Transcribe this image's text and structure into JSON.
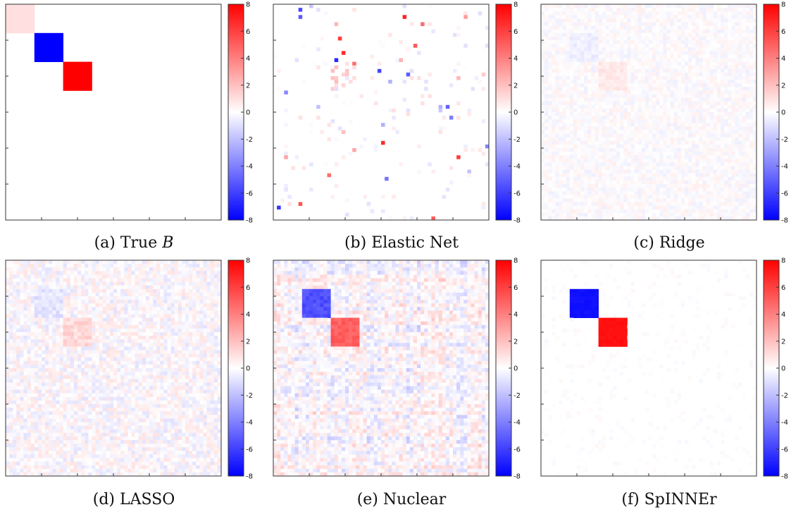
{
  "colorbar": {
    "min": -8,
    "max": 8,
    "ticks": [
      "8",
      "6",
      "4",
      "2",
      "0",
      "-2",
      "-4",
      "-6",
      "-8"
    ],
    "colors": {
      "low": "#0000ff",
      "mid": "#ffffff",
      "high": "#ff0000"
    }
  },
  "captions": [
    {
      "prefix": "(a) True ",
      "var": "B"
    },
    {
      "prefix": "(b) Elastic Net",
      "var": ""
    },
    {
      "prefix": "(c) Ridge",
      "var": ""
    },
    {
      "prefix": "(d) LASSO",
      "var": ""
    },
    {
      "prefix": "(e) Nuclear",
      "var": ""
    },
    {
      "prefix": "(f) SpINNEr",
      "var": ""
    }
  ],
  "chart_data": [
    {
      "type": "heatmap",
      "title": "(a) True B",
      "grid_size": 60,
      "zlim": [
        -8,
        8
      ],
      "blocks": [
        {
          "rows": [
            0,
            7
          ],
          "cols": [
            0,
            7
          ],
          "value": 1
        },
        {
          "rows": [
            8,
            15
          ],
          "cols": [
            8,
            15
          ],
          "value": -8
        },
        {
          "rows": [
            16,
            23
          ],
          "cols": [
            16,
            23
          ],
          "value": 8
        }
      ],
      "noise": {
        "amplitude": 0,
        "density": 0
      },
      "outliers": 0,
      "stripes": 0,
      "seed": 1
    },
    {
      "type": "heatmap",
      "title": "(b) Elastic Net",
      "grid_size": 60,
      "zlim": [
        -8,
        8
      ],
      "blocks": [
        {
          "rows": [
            16,
            23
          ],
          "cols": [
            16,
            23
          ],
          "value": 1.5,
          "density": 0.35
        }
      ],
      "noise": {
        "amplitude": 1,
        "density": 0.05
      },
      "outliers": 38,
      "stripes": 0,
      "seed": 2
    },
    {
      "type": "heatmap",
      "title": "(c) Ridge",
      "grid_size": 60,
      "zlim": [
        -8,
        8
      ],
      "blocks": [
        {
          "rows": [
            16,
            23
          ],
          "cols": [
            16,
            23
          ],
          "value": 0.7
        },
        {
          "rows": [
            8,
            15
          ],
          "cols": [
            8,
            15
          ],
          "value": -0.5
        }
      ],
      "noise": {
        "amplitude": 0.5,
        "density": 1
      },
      "outliers": 0,
      "stripes": 0,
      "seed": 3
    },
    {
      "type": "heatmap",
      "title": "(d) LASSO",
      "grid_size": 60,
      "zlim": [
        -8,
        8
      ],
      "blocks": [
        {
          "rows": [
            16,
            23
          ],
          "cols": [
            16,
            23
          ],
          "value": 1.2
        },
        {
          "rows": [
            8,
            15
          ],
          "cols": [
            8,
            15
          ],
          "value": -0.8
        }
      ],
      "noise": {
        "amplitude": 0.9,
        "density": 1
      },
      "outliers": 0,
      "stripes": 0,
      "seed": 4
    },
    {
      "type": "heatmap",
      "title": "(e) Nuclear",
      "grid_size": 60,
      "zlim": [
        -8,
        8
      ],
      "blocks": [
        {
          "rows": [
            8,
            15
          ],
          "cols": [
            8,
            15
          ],
          "value": -5.5
        },
        {
          "rows": [
            16,
            23
          ],
          "cols": [
            16,
            23
          ],
          "value": 5
        }
      ],
      "noise": {
        "amplitude": 0.9,
        "density": 1
      },
      "outliers": 0,
      "stripes": 1,
      "seed": 5
    },
    {
      "type": "heatmap",
      "title": "(f) SpINNEr",
      "grid_size": 60,
      "zlim": [
        -8,
        8
      ],
      "blocks": [
        {
          "rows": [
            8,
            15
          ],
          "cols": [
            8,
            15
          ],
          "value": -7.5
        },
        {
          "rows": [
            16,
            23
          ],
          "cols": [
            16,
            23
          ],
          "value": 7.5
        }
      ],
      "noise": {
        "amplitude": 0.25,
        "density": 0.15
      },
      "outliers": 0,
      "stripes": 0,
      "seed": 6
    }
  ]
}
